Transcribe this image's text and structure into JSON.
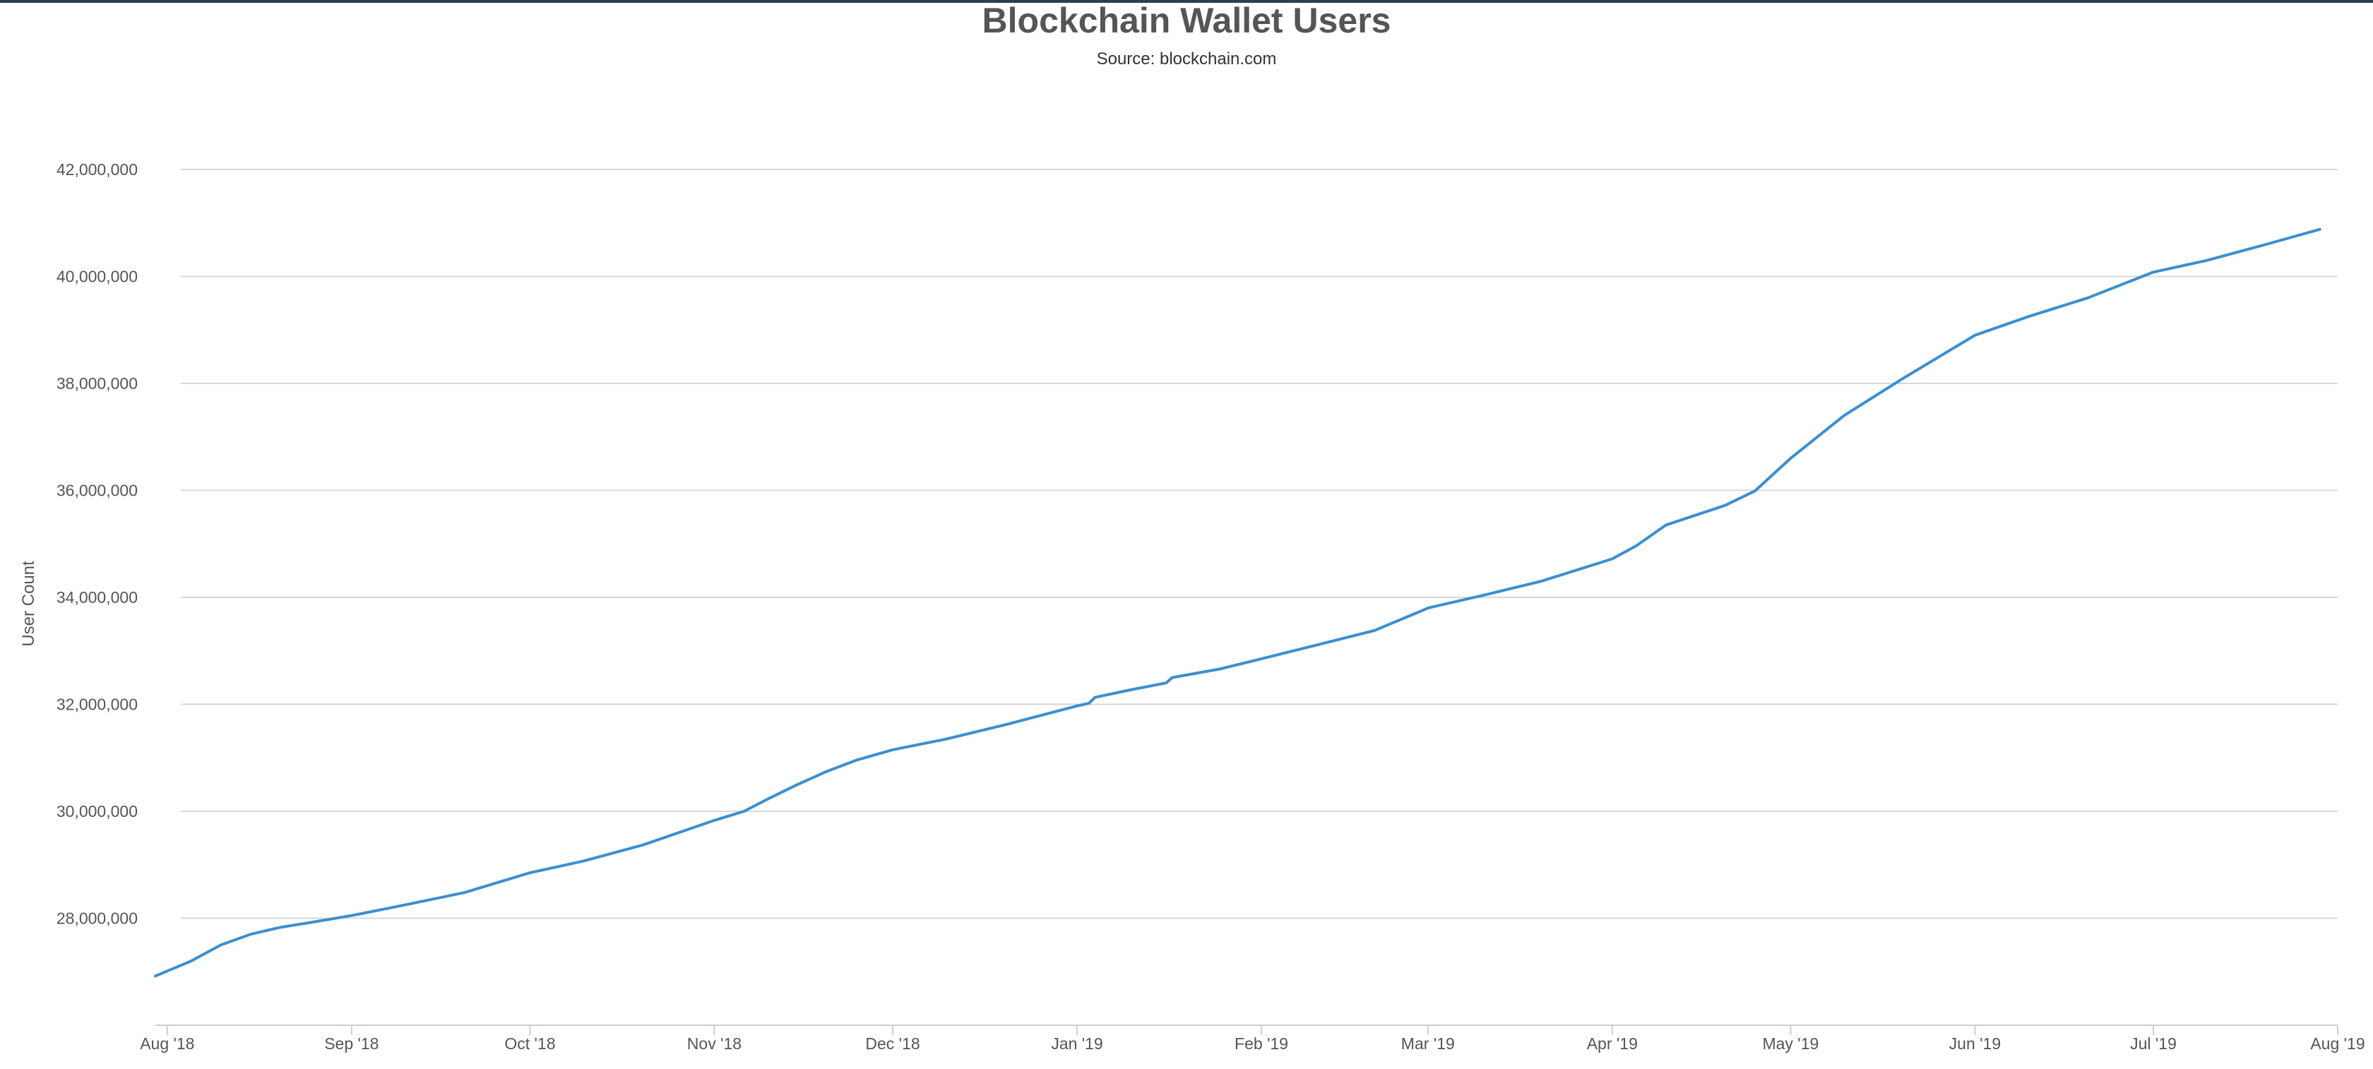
{
  "chart_data": {
    "type": "line",
    "title": "Blockchain Wallet Users",
    "subtitle": "Source: blockchain.com",
    "xlabel": "",
    "ylabel": "User Count",
    "ylim": [
      26000000,
      42000000
    ],
    "xlim": [
      "2018-07-30",
      "2019-08-01"
    ],
    "grid": true,
    "legend": "none",
    "colors": {
      "line": "#3b8fcf",
      "grid": "#d8d8d8",
      "axis": "#c6d0de"
    },
    "y_ticks": [
      {
        "value": 28000000,
        "label": "28,000,000"
      },
      {
        "value": 30000000,
        "label": "30,000,000"
      },
      {
        "value": 32000000,
        "label": "32,000,000"
      },
      {
        "value": 34000000,
        "label": "34,000,000"
      },
      {
        "value": 36000000,
        "label": "36,000,000"
      },
      {
        "value": 38000000,
        "label": "38,000,000"
      },
      {
        "value": 40000000,
        "label": "40,000,000"
      },
      {
        "value": 42000000,
        "label": "42,000,000"
      }
    ],
    "x_ticks": [
      {
        "date": "2018-08-01",
        "label": "Aug '18"
      },
      {
        "date": "2018-09-01",
        "label": "Sep '18"
      },
      {
        "date": "2018-10-01",
        "label": "Oct '18"
      },
      {
        "date": "2018-11-01",
        "label": "Nov '18"
      },
      {
        "date": "2018-12-01",
        "label": "Dec '18"
      },
      {
        "date": "2019-01-01",
        "label": "Jan '19"
      },
      {
        "date": "2019-02-01",
        "label": "Feb '19"
      },
      {
        "date": "2019-03-01",
        "label": "Mar '19"
      },
      {
        "date": "2019-04-01",
        "label": "Apr '19"
      },
      {
        "date": "2019-05-01",
        "label": "May '19"
      },
      {
        "date": "2019-06-01",
        "label": "Jun '19"
      },
      {
        "date": "2019-07-01",
        "label": "Jul '19"
      },
      {
        "date": "2019-08-01",
        "label": "Aug '19"
      }
    ],
    "series": [
      {
        "x": [
          "2018-07-30",
          "2018-08-05",
          "2018-08-10",
          "2018-08-15",
          "2018-08-20",
          "2018-08-25",
          "2018-09-01",
          "2018-09-10",
          "2018-09-20",
          "2018-10-01",
          "2018-10-10",
          "2018-10-20",
          "2018-11-01",
          "2018-11-06",
          "2018-11-10",
          "2018-11-15",
          "2018-11-20",
          "2018-11-25",
          "2018-12-01",
          "2018-12-10",
          "2018-12-20",
          "2019-01-01",
          "2019-01-03",
          "2019-01-04",
          "2019-01-10",
          "2019-01-16",
          "2019-01-17",
          "2019-01-25",
          "2019-02-01",
          "2019-02-10",
          "2019-02-20",
          "2019-02-28",
          "2019-03-01",
          "2019-03-10",
          "2019-03-20",
          "2019-04-01",
          "2019-04-05",
          "2019-04-10",
          "2019-04-20",
          "2019-04-25",
          "2019-05-01",
          "2019-05-10",
          "2019-05-20",
          "2019-06-01",
          "2019-06-10",
          "2019-06-20",
          "2019-07-01",
          "2019-07-10",
          "2019-07-20",
          "2019-07-29"
        ],
        "values": [
          26920000,
          27200000,
          27500000,
          27700000,
          27830000,
          27920000,
          28050000,
          28250000,
          28480000,
          28850000,
          29070000,
          29370000,
          29830000,
          30000000,
          30230000,
          30500000,
          30750000,
          30960000,
          31150000,
          31350000,
          31620000,
          31970000,
          32020000,
          32130000,
          32270000,
          32400000,
          32500000,
          32660000,
          32850000,
          33100000,
          33380000,
          33750000,
          33800000,
          34030000,
          34300000,
          34720000,
          34960000,
          35350000,
          35720000,
          35990000,
          36600000,
          37400000,
          38100000,
          38900000,
          39250000,
          39600000,
          40080000,
          40300000,
          40600000,
          40880000
        ]
      }
    ]
  }
}
